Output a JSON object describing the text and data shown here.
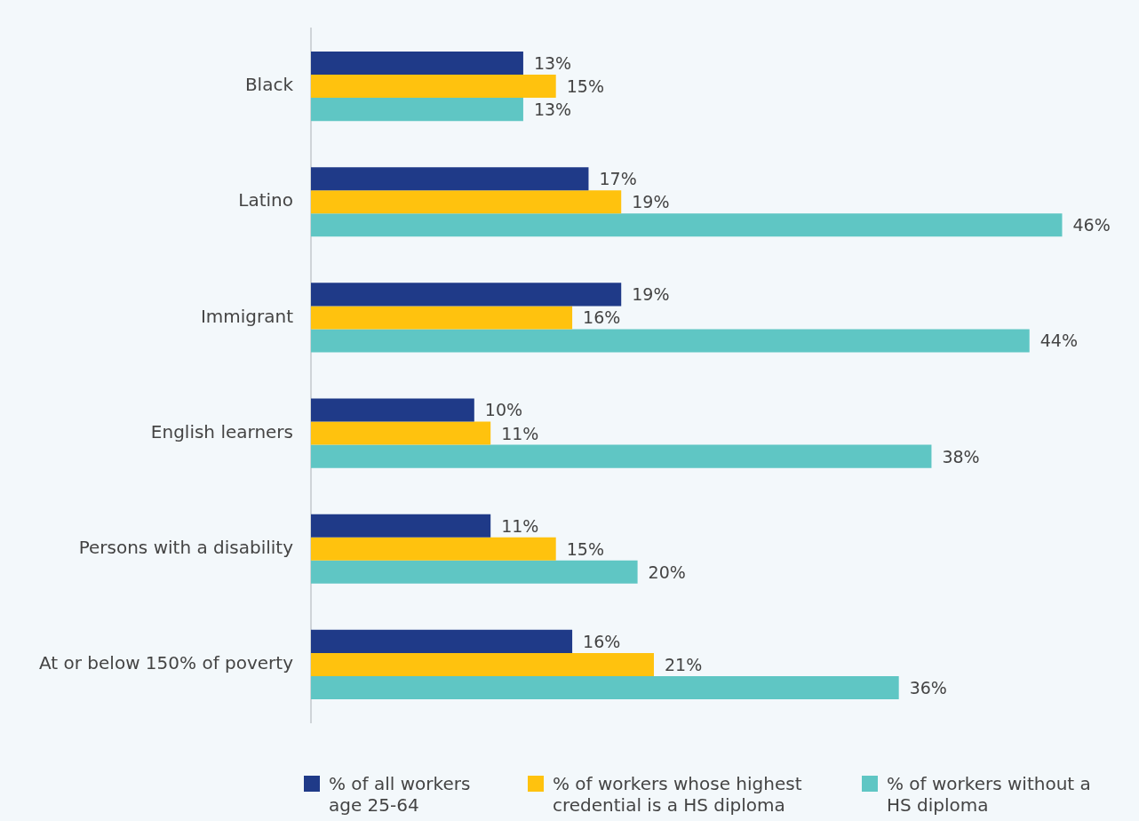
{
  "chart_data": {
    "type": "bar",
    "orientation": "horizontal",
    "categories": [
      "Black",
      "Latino",
      "Immigrant",
      "English learners",
      "Persons with a disability",
      "At or below 150% of poverty"
    ],
    "legend": "bottom",
    "series": [
      {
        "name": "% of all workers age 25-64",
        "color": "#1f3a88",
        "values": [
          13,
          17,
          19,
          10,
          11,
          16
        ],
        "value_labels": [
          "13%",
          "17%",
          "19%",
          "10%",
          "11%",
          "16%"
        ]
      },
      {
        "name": "% of workers whose highest credential is a HS diploma",
        "color": "#ffc20e",
        "values": [
          15,
          19,
          16,
          11,
          15,
          21
        ],
        "value_labels": [
          "15%",
          "19%",
          "16%",
          "11%",
          "15%",
          "21%"
        ]
      },
      {
        "name": "% of workers without a HS diploma",
        "color": "#5fc6c4",
        "values": [
          13,
          46,
          44,
          38,
          20,
          36
        ],
        "value_labels": [
          "13%",
          "46%",
          "44%",
          "38%",
          "20%",
          "36%"
        ]
      }
    ]
  }
}
